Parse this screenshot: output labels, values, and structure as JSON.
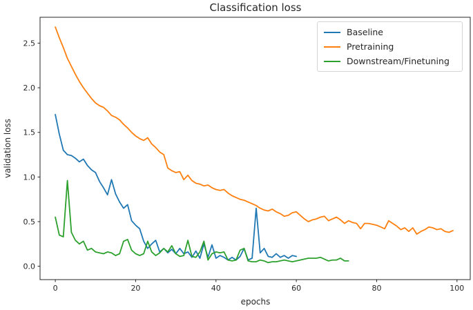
{
  "figure": {
    "background": "#ffffff",
    "text_color": "#262626",
    "spine_color": "#262626"
  },
  "chart_data": {
    "type": "line",
    "title": "Classification loss",
    "xlabel": "epochs",
    "ylabel": "validation loss",
    "xlim": [
      -3.8,
      103.3
    ],
    "ylim": [
      -0.15,
      2.79
    ],
    "xticks": [
      0,
      20,
      40,
      60,
      80,
      100
    ],
    "yticks": [
      0.0,
      0.5,
      1.0,
      1.5,
      2.0,
      2.5
    ],
    "grid": false,
    "legend": {
      "position": "upper right",
      "border_color": "#d4d4d4"
    },
    "x_start": 0,
    "x_step": 1,
    "series": [
      {
        "name": "Baseline",
        "color": "#1f77b4",
        "values": [
          1.7,
          1.48,
          1.3,
          1.25,
          1.24,
          1.21,
          1.17,
          1.2,
          1.13,
          1.08,
          1.05,
          0.95,
          0.88,
          0.8,
          0.97,
          0.81,
          0.72,
          0.65,
          0.69,
          0.51,
          0.46,
          0.42,
          0.28,
          0.2,
          0.25,
          0.29,
          0.16,
          0.2,
          0.15,
          0.19,
          0.14,
          0.2,
          0.14,
          0.16,
          0.1,
          0.17,
          0.09,
          0.25,
          0.1,
          0.24,
          0.09,
          0.12,
          0.1,
          0.07,
          0.1,
          0.07,
          0.11,
          0.2,
          0.07,
          0.09,
          0.65,
          0.15,
          0.2,
          0.11,
          0.1,
          0.14,
          0.1,
          0.12,
          0.09,
          0.12,
          0.11
        ]
      },
      {
        "name": "Pretraining",
        "color": "#ff7f0e",
        "values": [
          2.68,
          2.56,
          2.45,
          2.33,
          2.24,
          2.15,
          2.07,
          2.0,
          1.94,
          1.88,
          1.83,
          1.8,
          1.78,
          1.74,
          1.69,
          1.67,
          1.64,
          1.59,
          1.55,
          1.5,
          1.46,
          1.43,
          1.41,
          1.44,
          1.37,
          1.33,
          1.28,
          1.25,
          1.1,
          1.07,
          1.05,
          1.06,
          0.97,
          1.02,
          0.96,
          0.93,
          0.92,
          0.9,
          0.91,
          0.88,
          0.86,
          0.85,
          0.86,
          0.82,
          0.79,
          0.77,
          0.75,
          0.74,
          0.72,
          0.7,
          0.68,
          0.65,
          0.63,
          0.62,
          0.64,
          0.61,
          0.59,
          0.56,
          0.57,
          0.6,
          0.61,
          0.57,
          0.53,
          0.5,
          0.52,
          0.53,
          0.55,
          0.56,
          0.51,
          0.53,
          0.55,
          0.52,
          0.48,
          0.51,
          0.49,
          0.48,
          0.42,
          0.48,
          0.48,
          0.47,
          0.46,
          0.44,
          0.42,
          0.51,
          0.48,
          0.45,
          0.41,
          0.43,
          0.39,
          0.43,
          0.36,
          0.39,
          0.41,
          0.44,
          0.43,
          0.41,
          0.42,
          0.39,
          0.38,
          0.4
        ]
      },
      {
        "name": "Downstream/Finetuning",
        "color": "#2ca02c",
        "values": [
          0.55,
          0.35,
          0.33,
          0.96,
          0.38,
          0.29,
          0.25,
          0.28,
          0.18,
          0.2,
          0.16,
          0.15,
          0.14,
          0.16,
          0.15,
          0.12,
          0.14,
          0.28,
          0.3,
          0.18,
          0.14,
          0.12,
          0.14,
          0.28,
          0.16,
          0.12,
          0.15,
          0.2,
          0.16,
          0.23,
          0.14,
          0.11,
          0.12,
          0.29,
          0.11,
          0.1,
          0.16,
          0.28,
          0.07,
          0.14,
          0.16,
          0.15,
          0.16,
          0.07,
          0.06,
          0.07,
          0.18,
          0.2,
          0.06,
          0.05,
          0.05,
          0.07,
          0.06,
          0.04,
          0.05,
          0.05,
          0.06,
          0.07,
          0.06,
          0.05,
          0.06,
          0.07,
          0.08,
          0.09,
          0.09,
          0.09,
          0.1,
          0.08,
          0.06,
          0.07,
          0.07,
          0.09,
          0.06,
          0.06
        ]
      }
    ]
  }
}
